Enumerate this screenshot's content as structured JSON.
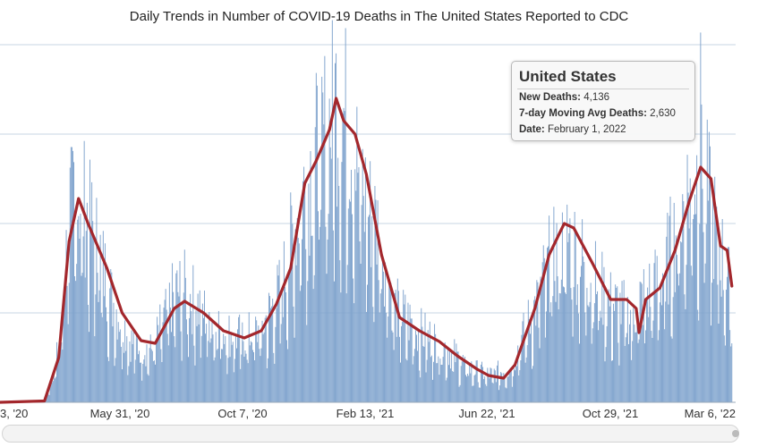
{
  "title": "Daily Trends in Number of COVID-19 Deaths in The United States Reported to CDC",
  "tooltip": {
    "title": "United States",
    "rows": [
      {
        "label": "New Deaths:",
        "value": "4,136"
      },
      {
        "label": "7-day Moving Avg Deaths:",
        "value": "2,630"
      },
      {
        "label": "Date:",
        "value": "February 1, 2022"
      }
    ]
  },
  "chart_data": {
    "type": "bar",
    "title": "Daily Trends in Number of COVID-19 Deaths in The United States Reported to CDC",
    "xlabel": "",
    "ylabel": "",
    "x_tick_labels": [
      "3, '20",
      "May 31, '20",
      "Oct 7, '20",
      "Feb 13, '21",
      "Jun 22, '21",
      "Oct 29, '21",
      "Mar 6, '22"
    ],
    "x_range": [
      "2020-01-23",
      "2022-03-10"
    ],
    "ylim": [
      0,
      4500
    ],
    "gridlines": [
      1000,
      2000,
      3000,
      4000
    ],
    "grid": true,
    "colors": {
      "bars": "#7fa3cd",
      "average_line": "#a3272c",
      "grid": "#c7d5e3"
    },
    "series": [
      {
        "name": "New Deaths",
        "mark": "bar",
        "keypoints": [
          [
            "2020-01-23",
            0
          ],
          [
            "2020-03-10",
            10
          ],
          [
            "2020-03-25",
            600
          ],
          [
            "2020-04-05",
            2100
          ],
          [
            "2020-04-12",
            2450
          ],
          [
            "2020-04-20",
            2300
          ],
          [
            "2020-05-05",
            1800
          ],
          [
            "2020-05-20",
            1200
          ],
          [
            "2020-06-10",
            700
          ],
          [
            "2020-07-01",
            600
          ],
          [
            "2020-07-25",
            1250
          ],
          [
            "2020-08-05",
            1300
          ],
          [
            "2020-08-25",
            1050
          ],
          [
            "2020-09-20",
            800
          ],
          [
            "2020-10-07",
            750
          ],
          [
            "2020-10-25",
            850
          ],
          [
            "2020-11-15",
            1300
          ],
          [
            "2020-12-05",
            2300
          ],
          [
            "2020-12-20",
            2800
          ],
          [
            "2021-01-05",
            3200
          ],
          [
            "2021-01-12",
            3500
          ],
          [
            "2021-01-25",
            3200
          ],
          [
            "2021-02-13",
            2300
          ],
          [
            "2021-03-01",
            1900
          ],
          [
            "2021-03-15",
            1100
          ],
          [
            "2021-04-10",
            820
          ],
          [
            "2021-05-10",
            620
          ],
          [
            "2021-06-01",
            400
          ],
          [
            "2021-06-22",
            320
          ],
          [
            "2021-07-15",
            400
          ],
          [
            "2021-08-10",
            1100
          ],
          [
            "2021-08-25",
            1600
          ],
          [
            "2021-09-15",
            1900
          ],
          [
            "2021-10-01",
            1600
          ],
          [
            "2021-10-29",
            1150
          ],
          [
            "2021-11-20",
            1000
          ],
          [
            "2021-12-01",
            1200
          ],
          [
            "2021-12-20",
            1400
          ],
          [
            "2022-01-10",
            2100
          ],
          [
            "2022-01-25",
            2650
          ],
          [
            "2022-02-05",
            2550
          ],
          [
            "2022-02-20",
            1850
          ],
          [
            "2022-03-06",
            1200
          ]
        ]
      },
      {
        "name": "7-day Moving Avg Deaths",
        "mark": "line",
        "points": [
          [
            "2020-01-23",
            0
          ],
          [
            "2020-03-10",
            15
          ],
          [
            "2020-03-25",
            500
          ],
          [
            "2020-04-05",
            1800
          ],
          [
            "2020-04-15",
            2280
          ],
          [
            "2020-04-25",
            2000
          ],
          [
            "2020-05-15",
            1500
          ],
          [
            "2020-05-31",
            1000
          ],
          [
            "2020-06-20",
            690
          ],
          [
            "2020-07-05",
            660
          ],
          [
            "2020-07-25",
            1050
          ],
          [
            "2020-08-05",
            1130
          ],
          [
            "2020-08-25",
            1000
          ],
          [
            "2020-09-15",
            800
          ],
          [
            "2020-10-07",
            720
          ],
          [
            "2020-10-25",
            800
          ],
          [
            "2020-11-10",
            1100
          ],
          [
            "2020-11-25",
            1500
          ],
          [
            "2020-12-10",
            2450
          ],
          [
            "2020-12-22",
            2700
          ],
          [
            "2021-01-05",
            3050
          ],
          [
            "2021-01-12",
            3400
          ],
          [
            "2021-01-20",
            3150
          ],
          [
            "2021-02-01",
            3000
          ],
          [
            "2021-02-13",
            2550
          ],
          [
            "2021-03-01",
            1650
          ],
          [
            "2021-03-20",
            950
          ],
          [
            "2021-04-10",
            800
          ],
          [
            "2021-05-01",
            680
          ],
          [
            "2021-05-20",
            520
          ],
          [
            "2021-06-10",
            370
          ],
          [
            "2021-06-22",
            300
          ],
          [
            "2021-07-08",
            270
          ],
          [
            "2021-07-20",
            420
          ],
          [
            "2021-08-10",
            1050
          ],
          [
            "2021-08-25",
            1650
          ],
          [
            "2021-09-10",
            2000
          ],
          [
            "2021-09-20",
            1950
          ],
          [
            "2021-10-10",
            1550
          ],
          [
            "2021-10-29",
            1150
          ],
          [
            "2021-11-15",
            1150
          ],
          [
            "2021-11-25",
            1050
          ],
          [
            "2021-11-28",
            780
          ],
          [
            "2021-12-05",
            1150
          ],
          [
            "2021-12-20",
            1280
          ],
          [
            "2022-01-05",
            1700
          ],
          [
            "2022-01-20",
            2250
          ],
          [
            "2022-02-01",
            2630
          ],
          [
            "2022-02-12",
            2500
          ],
          [
            "2022-02-22",
            1750
          ],
          [
            "2022-03-01",
            1700
          ],
          [
            "2022-03-06",
            1300
          ]
        ]
      }
    ],
    "highlight": {
      "date": "2022-02-01",
      "new_deaths": 4136,
      "avg_deaths": 2630
    }
  }
}
